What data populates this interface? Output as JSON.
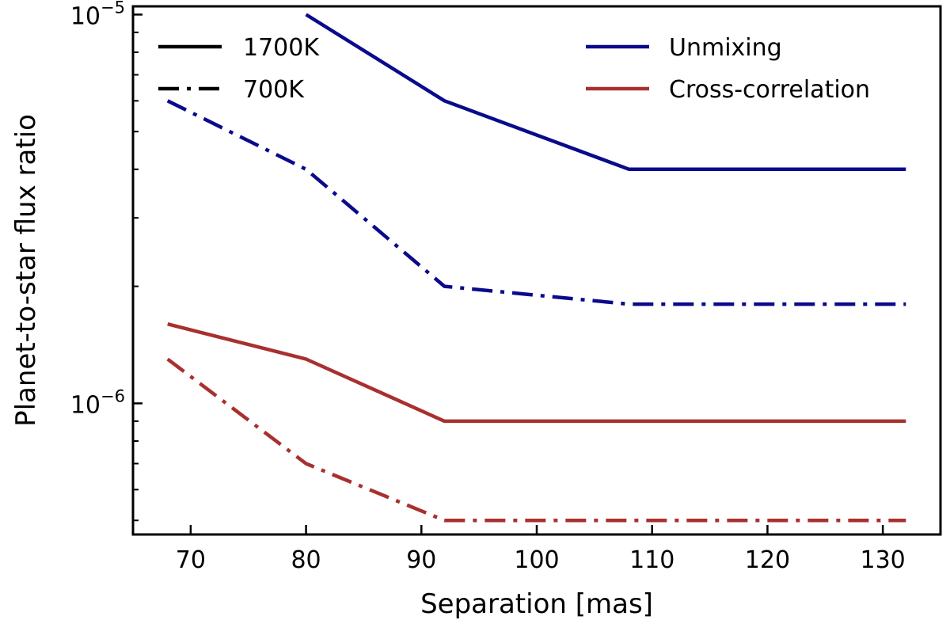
{
  "chart_data": {
    "type": "line",
    "title": "",
    "xlabel": "Separation [mas]",
    "ylabel": "Planet-to-star flux ratio",
    "yscale": "log",
    "xlim": [
      65,
      135
    ],
    "ylim": [
      4.6e-07,
      1.05e-05
    ],
    "x_ticks": [
      70,
      80,
      90,
      100,
      110,
      120,
      130
    ],
    "x_tick_labels": [
      "70",
      "80",
      "90",
      "100",
      "110",
      "120",
      "130"
    ],
    "y_major_ticks": [
      {
        "value": 1e-06,
        "base": "10",
        "exp": "−6"
      },
      {
        "value": 1e-05,
        "base": "10",
        "exp": "−5"
      }
    ],
    "y_minor_ticks": [
      5e-07,
      6e-07,
      7e-07,
      8e-07,
      9e-07,
      2e-06,
      3e-06,
      4e-06,
      5e-06,
      6e-06,
      7e-06,
      8e-06,
      9e-06
    ],
    "grid": false,
    "colors": {
      "unmixing": "#0a0a8c",
      "cross_correlation": "#a8302f",
      "axis": "#000000"
    },
    "series": [
      {
        "name": "Unmixing 1700K",
        "method": "Unmixing",
        "temperature": "1700K",
        "style": "solid",
        "color": "#0a0a8c",
        "x": [
          80,
          92,
          108,
          132
        ],
        "values": [
          1e-05,
          6e-06,
          4e-06,
          4e-06
        ]
      },
      {
        "name": "Unmixing 700K",
        "method": "Unmixing",
        "temperature": "700K",
        "style": "dashdot",
        "color": "#0a0a8c",
        "x": [
          68,
          80,
          92,
          108,
          132
        ],
        "values": [
          6e-06,
          4e-06,
          2e-06,
          1.8e-06,
          1.8e-06
        ]
      },
      {
        "name": "Cross-correlation 1700K",
        "method": "Cross-correlation",
        "temperature": "1700K",
        "style": "solid",
        "color": "#a8302f",
        "x": [
          68,
          80,
          92,
          132
        ],
        "values": [
          1.6e-06,
          1.3e-06,
          9e-07,
          9e-07
        ]
      },
      {
        "name": "Cross-correlation 700K",
        "method": "Cross-correlation",
        "temperature": "700K",
        "style": "dashdot",
        "color": "#a8302f",
        "x": [
          68,
          80,
          92,
          132
        ],
        "values": [
          1.3e-06,
          7e-07,
          5e-07,
          5e-07
        ]
      }
    ],
    "legend_styles": {
      "position": "top-left",
      "entries": [
        {
          "label": "1700K",
          "style": "solid",
          "color": "#000000"
        },
        {
          "label": "700K",
          "style": "dashdot",
          "color": "#000000"
        }
      ]
    },
    "legend_methods": {
      "position": "top-right",
      "entries": [
        {
          "label": "Unmixing",
          "style": "solid",
          "color": "#0a0a8c"
        },
        {
          "label": "Cross-correlation",
          "style": "solid",
          "color": "#a8302f"
        }
      ]
    }
  }
}
